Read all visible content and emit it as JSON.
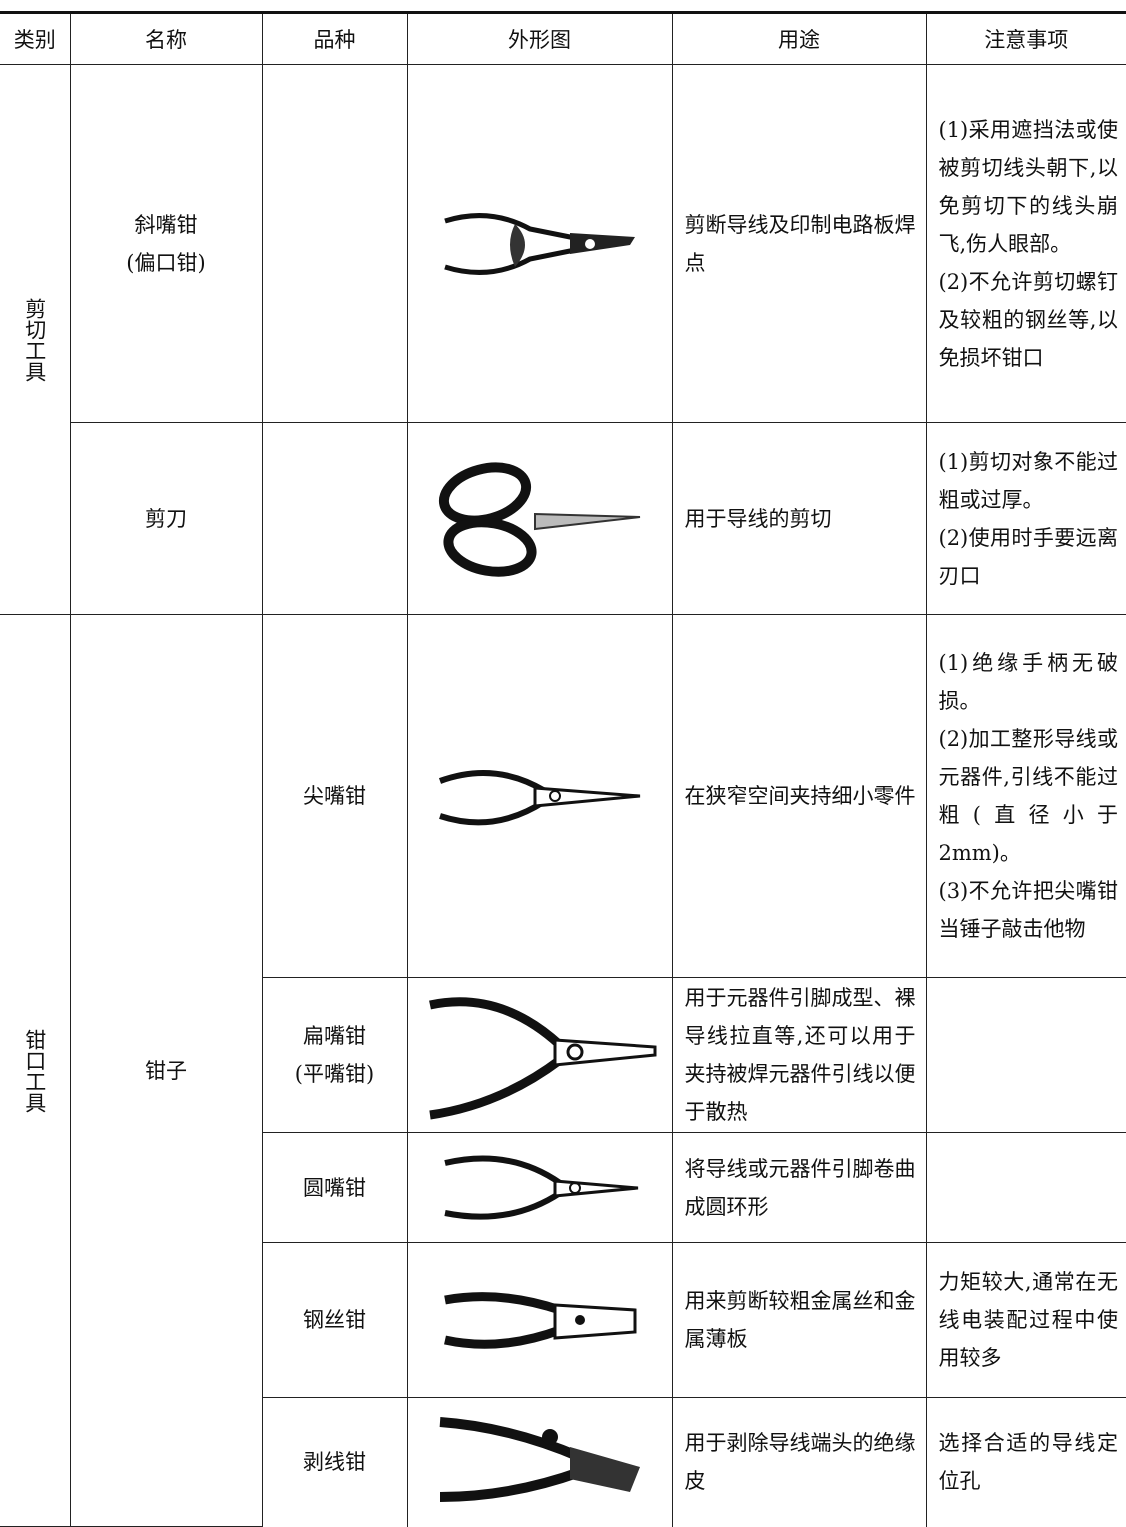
{
  "table": {
    "header": [
      "类别",
      "名称",
      "品种",
      "外形图",
      "用途",
      "注意事项"
    ],
    "groups": [
      {
        "category": "剪切工具",
        "items": [
          {
            "name": [
              "斜嘴钳",
              "(偏口钳)"
            ],
            "usage": "剪断导线及印制电路板焊点",
            "notes": [
              "(1)采用遮挡法或使被剪切线头朝下,以免剪切下的线头崩飞,伤人眼部。",
              "(2)不允许剪切螺钉及较粗的钢丝等,以免损坏钳口"
            ]
          },
          {
            "name": [
              "剪刀"
            ],
            "usage": "用于导线的剪切",
            "notes": [
              "(1)剪切对象不能过粗或过厚。",
              "(2)使用时手要远离刃口"
            ]
          }
        ]
      },
      {
        "category": "钳口工具",
        "items": [
          {
            "name": [
              "钳子"
            ],
            "varieties": [
              {
                "variety": [
                  "尖嘴钳"
                ],
                "usage": "在狭窄空间夹持细小零件",
                "notes": [
                  "(1)绝缘手柄无破损。",
                  "(2)加工整形导线或元器件,引线不能过粗(直径小于2mm)。",
                  "(3)不允许把尖嘴钳当锤子敲击他物"
                ]
              },
              {
                "variety": [
                  "扁嘴钳",
                  "(平嘴钳)"
                ],
                "usage": "用于元器件引脚成型、裸导线拉直等,还可以用于夹持被焊元器件引线以便于散热"
              },
              {
                "variety": [
                  "圆嘴钳"
                ],
                "usage": "将导线或元器件引脚卷曲成圆环形"
              },
              {
                "variety": [
                  "钢丝钳"
                ],
                "usage": "用来剪断较粗金属丝和金属薄板",
                "notes": [
                  "力矩较大,通常在无线电装配过程中使用较多"
                ]
              },
              {
                "variety": [
                  "剥线钳"
                ],
                "usage": "用于剥除导线端头的绝缘皮",
                "notes": [
                  "选择合适的导线定位孔"
                ]
              }
            ]
          }
        ]
      }
    ]
  }
}
